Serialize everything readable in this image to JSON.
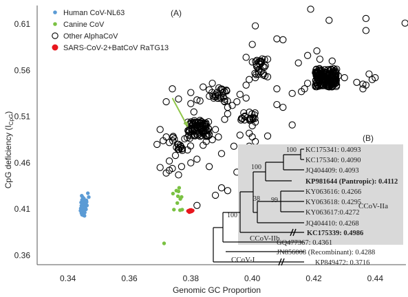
{
  "chart_data": {
    "type": "scatter",
    "panel_label": "(A)",
    "xlabel": "Genomic GC Proportion",
    "ylabel_main": "CpG deficiency (I",
    "ylabel_sub": "CpG",
    "ylabel_end": ")",
    "xlim": [
      0.33,
      0.45
    ],
    "ylim": [
      0.35,
      0.63
    ],
    "xticks": [
      "0.34",
      "0.36",
      "0.38",
      "0.40",
      "0.42",
      "0.44"
    ],
    "yticks": [
      "0.36",
      "0.41",
      "0.46",
      "0.51",
      "0.56",
      "0.61"
    ],
    "grid": false,
    "legend_position": "top-left",
    "colors": {
      "human": "#5b9bd5",
      "canine": "#7ac142",
      "other": "#000000",
      "sars": "#e8161d",
      "arrow": "#8fc649",
      "tree_box": "#d9d9d9",
      "highlight_text": "#e8161d"
    },
    "series": [
      {
        "name": "Human CoV-NL63",
        "marker": "filled-circle",
        "color": "#5b9bd5",
        "points": [
          [
            0.3445,
            0.4245
          ],
          [
            0.3448,
            0.423
          ],
          [
            0.3452,
            0.4215
          ],
          [
            0.3446,
            0.42
          ],
          [
            0.345,
            0.419
          ],
          [
            0.3455,
            0.418
          ],
          [
            0.3443,
            0.4172
          ],
          [
            0.3449,
            0.4165
          ],
          [
            0.3453,
            0.4158
          ],
          [
            0.3447,
            0.415
          ],
          [
            0.3451,
            0.4143
          ],
          [
            0.3444,
            0.4137
          ],
          [
            0.3456,
            0.413
          ],
          [
            0.3448,
            0.4124
          ],
          [
            0.3452,
            0.4118
          ],
          [
            0.3446,
            0.4112
          ],
          [
            0.345,
            0.4106
          ],
          [
            0.3454,
            0.41
          ],
          [
            0.3445,
            0.4094
          ],
          [
            0.3449,
            0.4088
          ],
          [
            0.3453,
            0.4082
          ],
          [
            0.3447,
            0.4076
          ],
          [
            0.3451,
            0.407
          ],
          [
            0.3455,
            0.4064
          ],
          [
            0.3444,
            0.4058
          ],
          [
            0.3448,
            0.4052
          ],
          [
            0.3452,
            0.4046
          ],
          [
            0.3446,
            0.404
          ],
          [
            0.345,
            0.4034
          ],
          [
            0.3454,
            0.4028
          ],
          [
            0.3458,
            0.416
          ],
          [
            0.346,
            0.4195
          ],
          [
            0.3457,
            0.4118
          ],
          [
            0.3462,
            0.414
          ],
          [
            0.3465,
            0.4272
          ],
          [
            0.3468,
            0.423
          ],
          [
            0.3442,
            0.4108
          ],
          [
            0.3441,
            0.4084
          ],
          [
            0.3459,
            0.4098
          ],
          [
            0.3461,
            0.4178
          ]
        ]
      },
      {
        "name": "Canine CoV",
        "marker": "filled-circle",
        "color": "#7ac142",
        "points": [
          [
            0.3762,
            0.433
          ],
          [
            0.3753,
            0.43
          ],
          [
            0.3742,
            0.4268
          ],
          [
            0.3758,
            0.424
          ],
          [
            0.377,
            0.4232
          ],
          [
            0.3766,
            0.4211
          ],
          [
            0.3756,
            0.4166
          ],
          [
            0.3745,
            0.4095
          ],
          [
            0.3772,
            0.4095
          ],
          [
            0.3765,
            0.4089
          ],
          [
            0.376,
            0.4292
          ],
          [
            0.3713,
            0.373
          ]
        ]
      },
      {
        "name": "Other AlphaCoV",
        "marker": "open-circle",
        "color": "#000000",
        "points": [
          [
            0.4497,
            0.611
          ],
          [
            0.437,
            0.603
          ],
          [
            0.425,
            0.614
          ],
          [
            0.419,
            0.626
          ],
          [
            0.437,
            0.616
          ],
          [
            0.401,
            0.608
          ],
          [
            0.4,
            0.588
          ],
          [
            0.408,
            0.594
          ],
          [
            0.41,
            0.593
          ],
          [
            0.405,
            0.572
          ],
          [
            0.4,
            0.569
          ],
          [
            0.398,
            0.574
          ],
          [
            0.402,
            0.559
          ],
          [
            0.403,
            0.568
          ],
          [
            0.399,
            0.55
          ],
          [
            0.401,
            0.552
          ],
          [
            0.421,
            0.581
          ],
          [
            0.418,
            0.576
          ],
          [
            0.415,
            0.568
          ],
          [
            0.422,
            0.572
          ],
          [
            0.426,
            0.57
          ],
          [
            0.428,
            0.554
          ],
          [
            0.43,
            0.552
          ],
          [
            0.434,
            0.547
          ],
          [
            0.437,
            0.544
          ],
          [
            0.439,
            0.55
          ],
          [
            0.44,
            0.552
          ],
          [
            0.417,
            0.54
          ],
          [
            0.408,
            0.523
          ],
          [
            0.41,
            0.52
          ],
          [
            0.413,
            0.501
          ],
          [
            0.398,
            0.544
          ],
          [
            0.396,
            0.534
          ],
          [
            0.395,
            0.526
          ],
          [
            0.3935,
            0.522
          ],
          [
            0.392,
            0.513
          ],
          [
            0.3965,
            0.508
          ],
          [
            0.391,
            0.507
          ],
          [
            0.392,
            0.52
          ],
          [
            0.384,
            0.542
          ],
          [
            0.386,
            0.539
          ],
          [
            0.387,
            0.546
          ],
          [
            0.388,
            0.534
          ],
          [
            0.389,
            0.533
          ],
          [
            0.391,
            0.537
          ],
          [
            0.383,
            0.527
          ],
          [
            0.382,
            0.528
          ],
          [
            0.38,
            0.524
          ],
          [
            0.381,
            0.515
          ],
          [
            0.379,
            0.504
          ],
          [
            0.376,
            0.529
          ],
          [
            0.374,
            0.54
          ],
          [
            0.372,
            0.526
          ],
          [
            0.37,
            0.496
          ],
          [
            0.372,
            0.488
          ],
          [
            0.373,
            0.482
          ],
          [
            0.376,
            0.48
          ],
          [
            0.378,
            0.486
          ],
          [
            0.377,
            0.475
          ],
          [
            0.375,
            0.468
          ],
          [
            0.373,
            0.462
          ],
          [
            0.374,
            0.454
          ],
          [
            0.377,
            0.456
          ],
          [
            0.38,
            0.46
          ],
          [
            0.382,
            0.464
          ],
          [
            0.386,
            0.456
          ],
          [
            0.39,
            0.47
          ],
          [
            0.394,
            0.478
          ],
          [
            0.396,
            0.49
          ],
          [
            0.399,
            0.492
          ],
          [
            0.4,
            0.5
          ],
          [
            0.401,
            0.504
          ],
          [
            0.4,
            0.488
          ],
          [
            0.401,
            0.483
          ],
          [
            0.399,
            0.478
          ],
          [
            0.405,
            0.489
          ],
          [
            0.401,
            0.472
          ],
          [
            0.402,
            0.465
          ],
          [
            0.402,
            0.456
          ],
          [
            0.398,
            0.46
          ],
          [
            0.395,
            0.45
          ],
          [
            0.4,
            0.447
          ],
          [
            0.403,
            0.442
          ],
          [
            0.403,
            0.438
          ],
          [
            0.406,
            0.423
          ],
          [
            0.406,
            0.419
          ],
          [
            0.402,
            0.42
          ],
          [
            0.392,
            0.43
          ],
          [
            0.39,
            0.433
          ],
          [
            0.388,
            0.425
          ],
          [
            0.382,
            0.414
          ],
          [
            0.372,
            0.449
          ],
          [
            0.373,
            0.452
          ],
          [
            0.376,
            0.447
          ],
          [
            0.37,
            0.455
          ],
          [
            0.369,
            0.48
          ],
          [
            0.371,
            0.484
          ],
          [
            0.386,
            0.491
          ],
          [
            0.388,
            0.496
          ],
          [
            0.389,
            0.488
          ],
          [
            0.387,
            0.485
          ],
          [
            0.385,
            0.483
          ],
          [
            0.384,
            0.479
          ],
          [
            0.383,
            0.506
          ],
          [
            0.391,
            0.526
          ],
          [
            0.398,
            0.53
          ],
          [
            0.38,
            0.536
          ],
          [
            0.418,
            0.546
          ],
          [
            0.405,
            0.553
          ],
          [
            0.413,
            0.535
          ],
          [
            0.416,
            0.537
          ],
          [
            0.408,
            0.54
          ],
          [
            0.436,
            0.545
          ],
          [
            0.438,
            0.556
          ],
          [
            0.436,
            0.54
          ]
        ],
        "clusters": [
          {
            "x_range": [
              0.379,
              0.386
            ],
            "y_range": [
              0.488,
              0.506
            ],
            "count": 80
          },
          {
            "x_range": [
              0.4205,
              0.4275
            ],
            "y_range": [
              0.542,
              0.562
            ],
            "count": 160
          },
          {
            "x_range": [
              0.4005,
              0.4045
            ],
            "y_range": [
              0.553,
              0.573
            ],
            "count": 25
          },
          {
            "x_range": [
              0.396,
              0.401
            ],
            "y_range": [
              0.504,
              0.516
            ],
            "count": 18
          },
          {
            "x_range": [
              0.386,
              0.392
            ],
            "y_range": [
              0.525,
              0.542
            ],
            "count": 22
          },
          {
            "x_range": [
              0.374,
              0.38
            ],
            "y_range": [
              0.473,
              0.49
            ],
            "count": 18
          }
        ]
      },
      {
        "name": "SARS-CoV-2+BatCoV RaTG13",
        "marker": "filled-circle",
        "color": "#e8161d",
        "points": [
          [
            0.3793,
            0.4084
          ],
          [
            0.3798,
            0.4086
          ],
          [
            0.3802,
            0.4088
          ],
          [
            0.3796,
            0.408
          ],
          [
            0.38,
            0.4078
          ],
          [
            0.3804,
            0.4082
          ],
          [
            0.3794,
            0.4074
          ],
          [
            0.3799,
            0.4072
          ],
          [
            0.3803,
            0.4076
          ],
          [
            0.3797,
            0.409
          ],
          [
            0.3801,
            0.4092
          ],
          [
            0.3795,
            0.4068
          ],
          [
            0.3806,
            0.4085
          ],
          [
            0.3791,
            0.4079
          ]
        ]
      }
    ],
    "arrow": {
      "from": [
        0.374,
        0.53
      ],
      "to": [
        0.379,
        0.499
      ]
    },
    "inset": {
      "label": "(B)",
      "leaves": [
        {
          "label": "KC175341: 0.4093",
          "highlight": false,
          "bold": false
        },
        {
          "label": "KC175340: 0.4090",
          "highlight": false,
          "bold": false
        },
        {
          "label": "JQ404409: 0.4093",
          "highlight": false,
          "bold": false
        },
        {
          "label": "KP981644 (Pantropic): 0.4112",
          "highlight": true,
          "bold": true
        },
        {
          "label": "KY063616: 0.4266",
          "highlight": false,
          "bold": false
        },
        {
          "label": "KY063618: 0.4295",
          "highlight": false,
          "bold": false
        },
        {
          "label": "KY063617:0.4272",
          "highlight": false,
          "bold": false
        },
        {
          "label": "JQ404410: 0.4268",
          "highlight": false,
          "bold": false
        },
        {
          "label": "KC175339: 0.4986",
          "highlight": false,
          "bold": true
        },
        {
          "label": "GQ477367: 0.4361",
          "highlight": false,
          "bold": false
        },
        {
          "label": "JN856008 (Recombinant): 0.4288",
          "highlight": false,
          "bold": false
        },
        {
          "label": "KP849472: 0.3716",
          "highlight": false,
          "bold": false
        }
      ],
      "bootstraps": [
        "100",
        "100",
        "38",
        "99",
        "100"
      ],
      "clades": [
        "CCoV-IIa",
        "CCoV-IIb",
        "CCoV-I"
      ]
    }
  }
}
